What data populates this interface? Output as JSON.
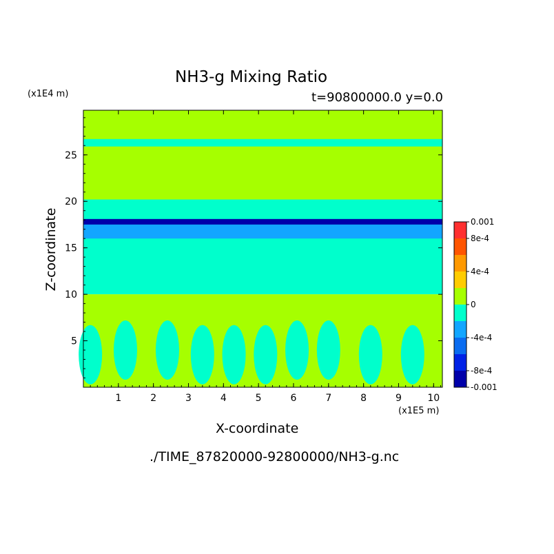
{
  "chart_data": {
    "type": "heatmap",
    "title": "NH3-g Mixing Ratio",
    "subtitle": "t=90800000.0 y=0.0",
    "xlabel": "X-coordinate",
    "ylabel": "Z-coordinate",
    "x_unit": "(x1E5 m)",
    "y_unit": "(x1E4 m)",
    "xlim": [
      0,
      10.25
    ],
    "ylim": [
      0,
      29.8
    ],
    "x_ticks": [
      1,
      2,
      3,
      4,
      5,
      6,
      7,
      8,
      9,
      10
    ],
    "y_ticks": [
      5,
      10,
      15,
      20,
      25
    ],
    "grid": false,
    "source_path": "./TIME_87820000-92800000/NH3-g.nc",
    "colorbar": {
      "placement": "right",
      "levels": [
        -0.001,
        -0.0008,
        -0.0006,
        -0.0004,
        -0.0002,
        0,
        0.0002,
        0.0004,
        0.0006,
        0.0008,
        0.001
      ],
      "colors": [
        "#0000aa",
        "#0022e6",
        "#0a6cf0",
        "#12a6ff",
        "#00ffcc",
        "#a6ff00",
        "#ffcc00",
        "#ff9900",
        "#ff5500",
        "#ff3030"
      ],
      "tick_labels": [
        {
          "value": 0.001,
          "label": "0.001"
        },
        {
          "value": 0.0008,
          "label": "8e-4"
        },
        {
          "value": 0.0004,
          "label": "4e-4"
        },
        {
          "value": 0,
          "label": "0"
        },
        {
          "value": -0.0004,
          "label": "-4e-4"
        },
        {
          "value": -0.0008,
          "label": "-8e-4"
        },
        {
          "value": -0.001,
          "label": "-0.001"
        }
      ]
    },
    "bands": [
      {
        "z_range": [
          20.2,
          29.8
        ],
        "value": 0.0001
      },
      {
        "z_range": [
          25.9,
          26.7
        ],
        "value": -0.0001
      },
      {
        "z_range": [
          10.0,
          20.2
        ],
        "value": -0.0001
      },
      {
        "z_range": [
          17.5,
          18.1
        ],
        "value": -0.0009
      },
      {
        "z_range": [
          16.0,
          17.5
        ],
        "value": -0.0003
      },
      {
        "z_range": [
          0,
          10.0
        ],
        "value": 0.0001
      }
    ],
    "cells": [
      {
        "x_center": 0.2,
        "z_center": 3.5,
        "value": -0.0001
      },
      {
        "x_center": 1.2,
        "z_center": 4.0,
        "value": -0.0001
      },
      {
        "x_center": 2.4,
        "z_center": 4.0,
        "value": -0.0001
      },
      {
        "x_center": 3.4,
        "z_center": 3.5,
        "value": -0.0001
      },
      {
        "x_center": 4.3,
        "z_center": 3.5,
        "value": -0.0001
      },
      {
        "x_center": 5.2,
        "z_center": 3.5,
        "value": -0.0001
      },
      {
        "x_center": 6.1,
        "z_center": 4.0,
        "value": -0.0001
      },
      {
        "x_center": 7.0,
        "z_center": 4.0,
        "value": -0.0001
      },
      {
        "x_center": 8.2,
        "z_center": 3.5,
        "value": -0.0001
      },
      {
        "x_center": 9.4,
        "z_center": 3.5,
        "value": -0.0001
      }
    ]
  }
}
